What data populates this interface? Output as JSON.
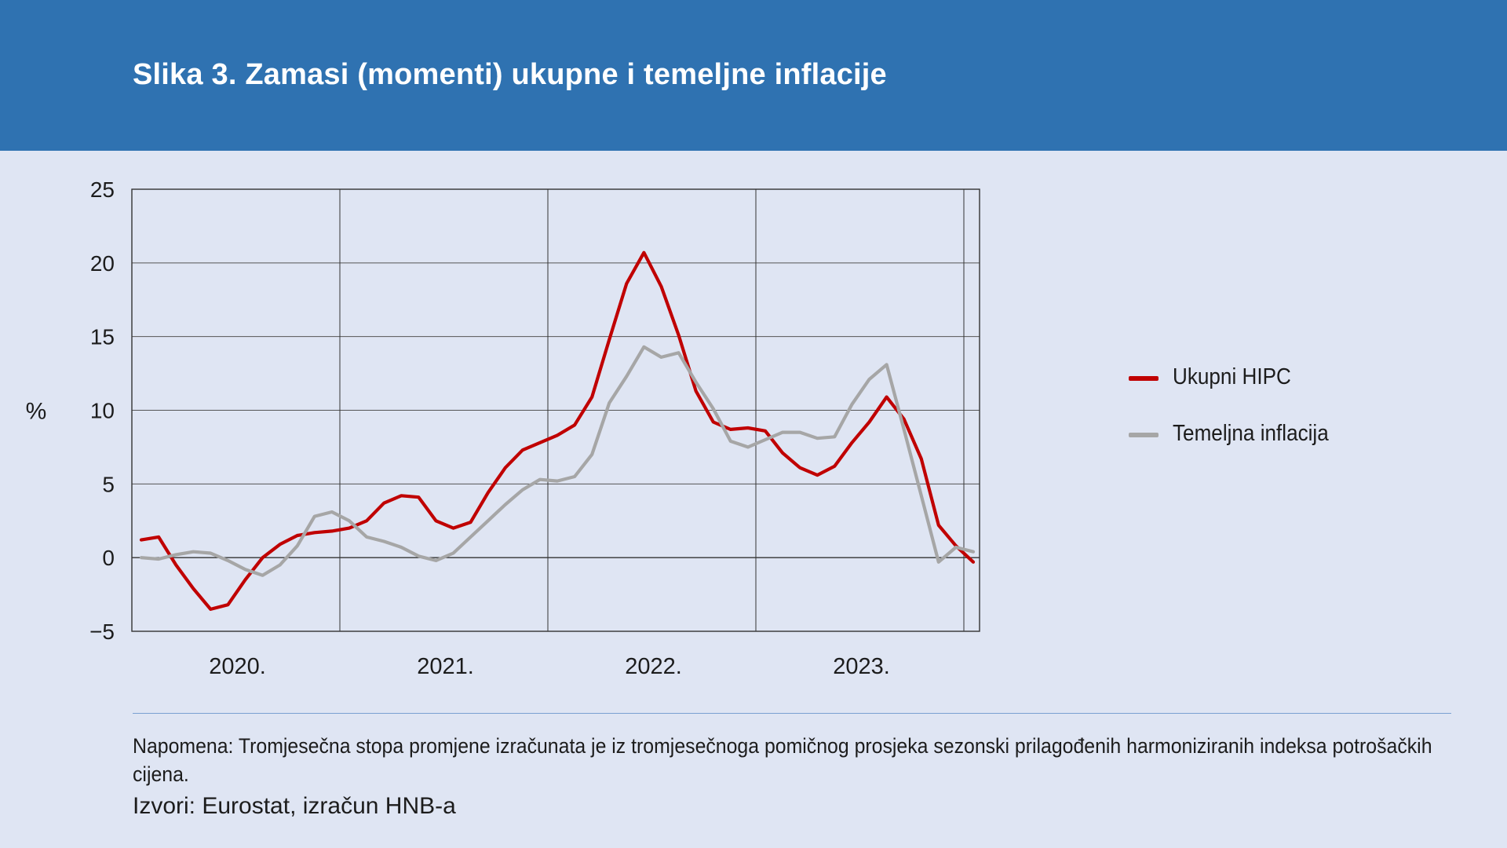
{
  "title": "Slika 3. Zamasi (momenti) ukupne i temeljne inflacije",
  "note": "Napomena: Tromjesečna stopa promjene izračunata je iz tromjesečnoga pomičnog prosjeka sezonski prilagođenih harmoniziranih indeksa potrošačkih cijena.",
  "sources": "Izvori: Eurostat, izračun HNB-a",
  "colors": {
    "header": "#2f72b1",
    "background": "#dfe5f3",
    "hipc": "#c00000",
    "core": "#a6a6a6"
  },
  "chart_data": {
    "type": "line",
    "title": "Slika 3. Zamasi (momenti) ukupne i temeljne inflacije",
    "xlabel": "",
    "ylabel": "%",
    "ylim": [
      -5,
      25
    ],
    "yticks": [
      25,
      20,
      15,
      10,
      5,
      0,
      -5
    ],
    "ytick_labels": [
      "25",
      "20",
      "15",
      "10",
      "5",
      "0",
      "−5"
    ],
    "year_labels": [
      "2020.",
      "2021.",
      "2022.",
      "2023."
    ],
    "months_per_year": 12,
    "grid": true,
    "legend_position": "right",
    "series": [
      {
        "name": "Ukupni HIPC",
        "color": "#c00000",
        "values": [
          1.2,
          1.4,
          -0.5,
          -2.1,
          -3.5,
          -3.2,
          -1.5,
          0.0,
          0.9,
          1.5,
          1.7,
          1.8,
          2.0,
          2.5,
          3.7,
          4.2,
          4.1,
          2.5,
          2.0,
          2.4,
          4.4,
          6.1,
          7.3,
          7.8,
          8.3,
          9.0,
          10.9,
          14.8,
          18.6,
          20.7,
          18.4,
          15.1,
          11.3,
          9.2,
          8.7,
          8.8,
          8.6,
          7.1,
          6.1,
          5.6,
          6.2,
          7.8,
          9.2,
          10.9,
          9.4,
          6.7,
          2.2,
          0.8,
          -0.3
        ]
      },
      {
        "name": "Temeljna inflacija",
        "color": "#a6a6a6",
        "values": [
          0.0,
          -0.1,
          0.2,
          0.4,
          0.3,
          -0.2,
          -0.8,
          -1.2,
          -0.5,
          0.8,
          2.8,
          3.1,
          2.5,
          1.4,
          1.1,
          0.7,
          0.1,
          -0.2,
          0.3,
          1.4,
          2.5,
          3.6,
          4.6,
          5.3,
          5.2,
          5.5,
          7.0,
          10.5,
          12.3,
          14.3,
          13.6,
          13.9,
          11.9,
          10.1,
          7.9,
          7.5,
          8.0,
          8.5,
          8.5,
          8.1,
          8.2,
          10.4,
          12.1,
          13.1,
          8.7,
          4.2,
          -0.3,
          0.7,
          0.4
        ]
      }
    ]
  }
}
